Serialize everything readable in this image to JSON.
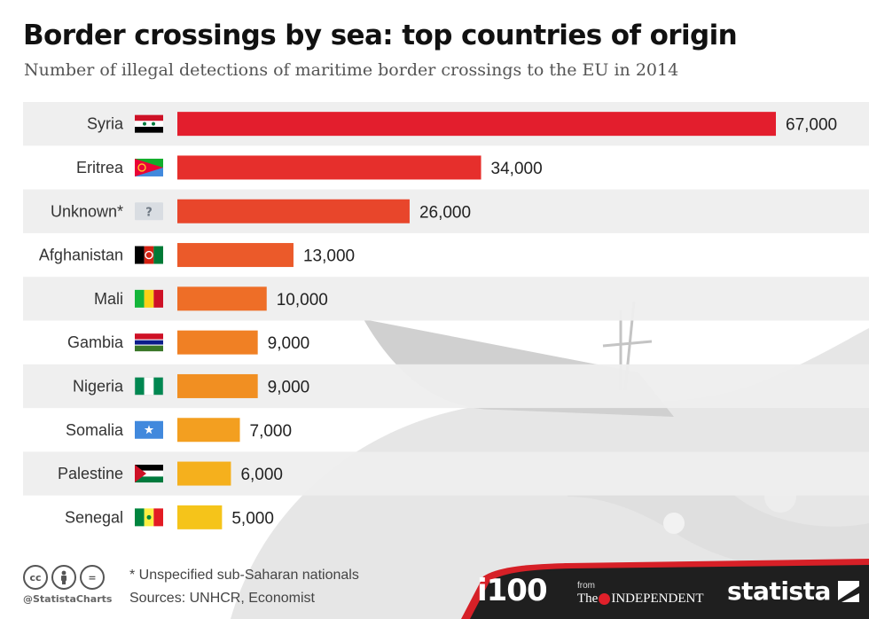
{
  "header": {
    "title": "Border crossings by sea: top countries of origin",
    "subtitle": "Number of illegal detections of maritime border crossings to the EU in 2014"
  },
  "chart_data": {
    "type": "bar",
    "orientation": "horizontal",
    "title": "Border crossings by sea: top countries of origin",
    "subtitle": "Number of illegal detections of maritime border crossings to the EU in 2014",
    "categories": [
      "Syria",
      "Eritrea",
      "Unknown*",
      "Afghanistan",
      "Mali",
      "Gambia",
      "Nigeria",
      "Somalia",
      "Palestine",
      "Senegal"
    ],
    "values": [
      67000,
      34000,
      26000,
      13000,
      10000,
      9000,
      9000,
      7000,
      6000,
      5000
    ],
    "value_labels": [
      "67,000",
      "34,000",
      "26,000",
      "13,000",
      "10,000",
      "9,000",
      "9,000",
      "7,000",
      "6,000",
      "5,000"
    ],
    "bar_colors": [
      "#e31e2d",
      "#e62f2c",
      "#e8462b",
      "#eb5a2a",
      "#ee6e27",
      "#f08024",
      "#f18f22",
      "#f39f20",
      "#f5b01d",
      "#f5c41a"
    ],
    "flags": [
      "syria-flag-icon",
      "eritrea-flag-icon",
      "unknown-flag-icon",
      "afghanistan-flag-icon",
      "mali-flag-icon",
      "gambia-flag-icon",
      "nigeria-flag-icon",
      "somalia-flag-icon",
      "palestine-flag-icon",
      "senegal-flag-icon"
    ],
    "xlim": [
      0,
      67000
    ],
    "row_band_colors": [
      "#eeeeee",
      "#ffffff"
    ]
  },
  "unknown_flag_text": "?",
  "footer": {
    "note": "* Unspecified sub-Saharan nationals",
    "sources": "Sources: UNHCR, Economist",
    "handle": "@StatistaCharts",
    "cc_icons": [
      "cc",
      "by",
      "="
    ],
    "i100": "i100",
    "from": "from",
    "independent_the": "The",
    "independent_name": "INDEPENDENT",
    "statista": "statista"
  },
  "colors": {
    "banner": "#1f1f1f",
    "banner_accent": "#d62027"
  }
}
